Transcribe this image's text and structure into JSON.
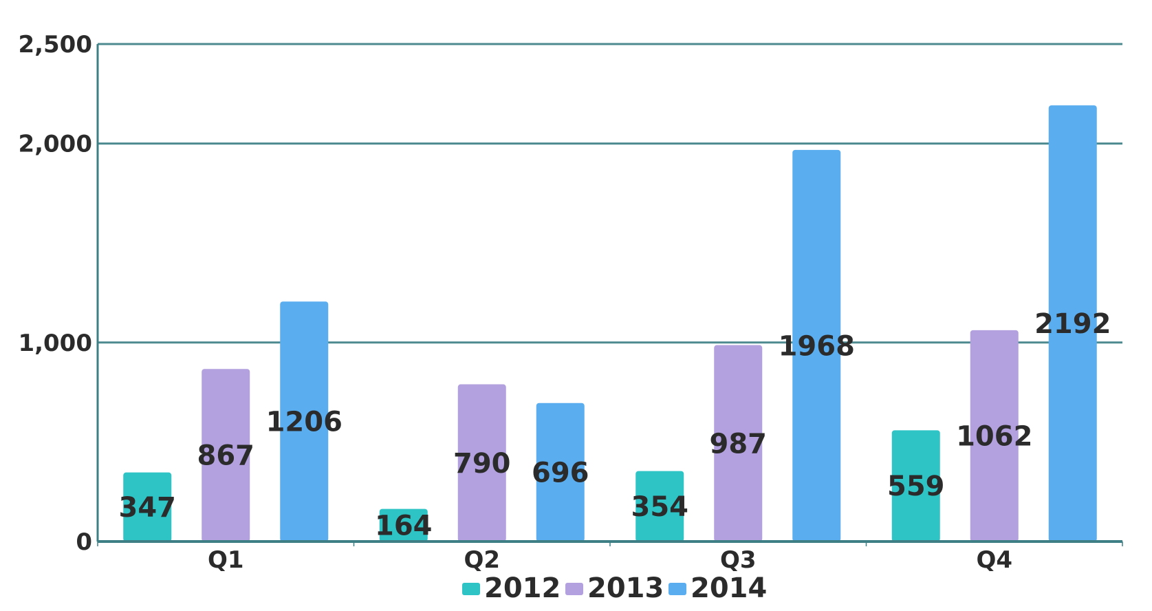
{
  "chart_data": {
    "type": "bar",
    "categories": [
      "Q1",
      "Q2",
      "Q3",
      "Q4"
    ],
    "series": [
      {
        "name": "2012",
        "color": "#2ec4c6",
        "values": [
          347,
          164,
          354,
          559
        ]
      },
      {
        "name": "2013",
        "color": "#b3a0de",
        "values": [
          867,
          790,
          987,
          1062
        ]
      },
      {
        "name": "2014",
        "color": "#5aaef0",
        "values": [
          1206,
          696,
          1968,
          2192
        ]
      }
    ],
    "y_ticks": [
      {
        "value": 0,
        "label": "0"
      },
      {
        "value": 1000,
        "label": "1,000"
      },
      {
        "value": 2000,
        "label": "2,000"
      },
      {
        "value": 2500,
        "label": "2,500"
      }
    ],
    "ylim": [
      0,
      2500
    ],
    "grid": true,
    "legend_position": "bottom",
    "title": "",
    "xlabel": "",
    "ylabel": ""
  }
}
